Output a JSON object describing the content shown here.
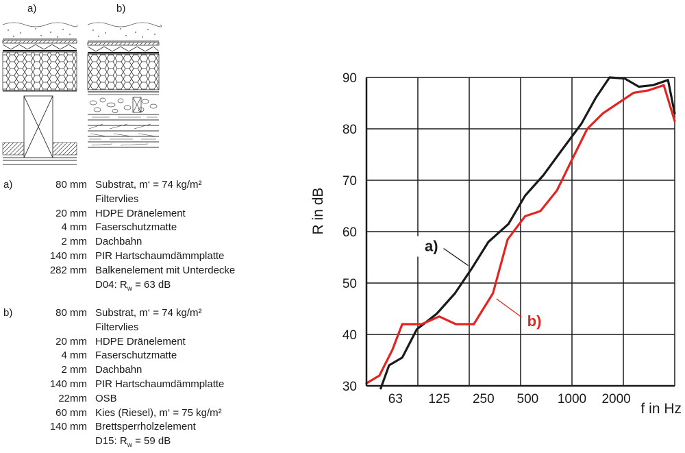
{
  "diagram": {
    "label_a": "a)",
    "label_b": "b)"
  },
  "specs": [
    {
      "key": "a)",
      "layers": [
        {
          "t": "80 mm",
          "d": "Substrat, m‘ = 74 kg/m²"
        },
        {
          "t": "",
          "d": "Filtervlies"
        },
        {
          "t": "20 mm",
          "d": "HDPE Dränelement"
        },
        {
          "t": "4 mm",
          "d": "Faserschutzmatte"
        },
        {
          "t": "2 mm",
          "d": "Dachbahn"
        },
        {
          "t": "140 mm",
          "d": "PIR Hartschaumdämmplatte"
        },
        {
          "t": "282 mm",
          "d": "Balkenelement mit Unterdecke"
        }
      ],
      "rating_code": "D04: R",
      "rating_sub": "w",
      "rating_val": " = 63 dB"
    },
    {
      "key": "b)",
      "layers": [
        {
          "t": "80 mm",
          "d": "Substrat, m‘ = 74 kg/m²"
        },
        {
          "t": "",
          "d": "Filtervlies"
        },
        {
          "t": "20 mm",
          "d": "HDPE Dränelement"
        },
        {
          "t": "4 mm",
          "d": "Faserschutzmatte"
        },
        {
          "t": "2 mm",
          "d": "Dachbahn"
        },
        {
          "t": "140 mm",
          "d": "PIR Hartschaumdämmplatte"
        },
        {
          "t": "22mm",
          "d": "OSB"
        },
        {
          "t": "60 mm",
          "d": "Kies (Riesel), m‘ = 75 kg/m²"
        },
        {
          "t": "140 mm",
          "d": "Brettsperrholzelement"
        }
      ],
      "rating_code": "D15: R",
      "rating_sub": "w",
      "rating_val": " = 59 dB"
    }
  ],
  "chart_data": {
    "type": "line",
    "ylabel": "R in dB",
    "xlabel": "f in Hz",
    "x_tick_labels": [
      "63",
      "125",
      "250",
      "500",
      "1000",
      "2000"
    ],
    "x_tick_values": [
      63,
      125,
      250,
      500,
      1000,
      2000
    ],
    "xlim": [
      40,
      5000
    ],
    "x_scale": "log",
    "ylim": [
      30,
      90
    ],
    "y_ticks": [
      30,
      40,
      50,
      60,
      70,
      80,
      90
    ],
    "grid": true,
    "series": [
      {
        "name": "a)",
        "color": "#1a1a1a",
        "points": [
          [
            50,
            29.5
          ],
          [
            57,
            34
          ],
          [
            70,
            35.5
          ],
          [
            88,
            41
          ],
          [
            120,
            44
          ],
          [
            160,
            48
          ],
          [
            210,
            53
          ],
          [
            270,
            58
          ],
          [
            370,
            61.5
          ],
          [
            480,
            67
          ],
          [
            640,
            71
          ],
          [
            860,
            76
          ],
          [
            1160,
            81
          ],
          [
            1450,
            86
          ],
          [
            1800,
            90
          ],
          [
            2280,
            89.8
          ],
          [
            2850,
            88.2
          ],
          [
            3550,
            88.5
          ],
          [
            4500,
            89.5
          ],
          [
            5000,
            83
          ]
        ]
      },
      {
        "name": "b)",
        "color": "#e32420",
        "points": [
          [
            40,
            30.5
          ],
          [
            49,
            32
          ],
          [
            60,
            37
          ],
          [
            70,
            42
          ],
          [
            95,
            42
          ],
          [
            125,
            43.5
          ],
          [
            162,
            42
          ],
          [
            215,
            42
          ],
          [
            290,
            48
          ],
          [
            365,
            58.5
          ],
          [
            480,
            63
          ],
          [
            610,
            64
          ],
          [
            790,
            68
          ],
          [
            1000,
            74
          ],
          [
            1270,
            80
          ],
          [
            1620,
            83
          ],
          [
            2060,
            85
          ],
          [
            2620,
            87
          ],
          [
            3320,
            87.5
          ],
          [
            4210,
            88.5
          ],
          [
            5000,
            81.5
          ]
        ]
      }
    ],
    "annotations": [
      {
        "text": "a)",
        "series": 0,
        "at_x": 210
      },
      {
        "text": "b)",
        "series": 1,
        "at_x": 290
      }
    ]
  }
}
